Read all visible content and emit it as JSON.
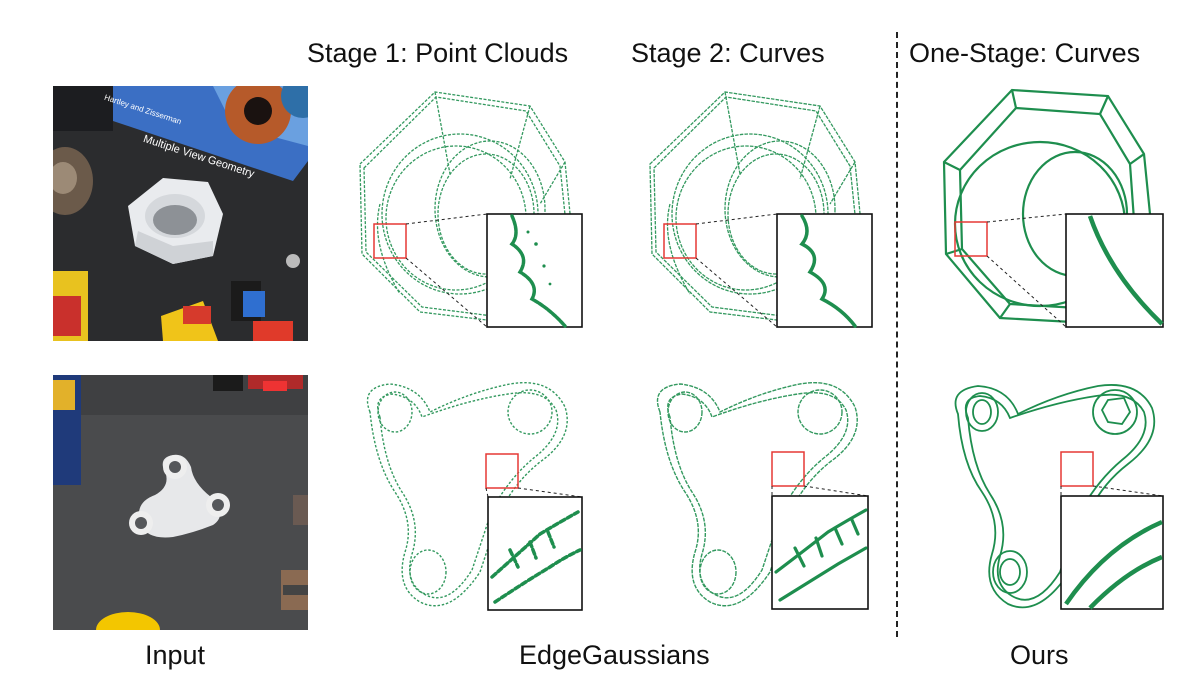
{
  "headers": {
    "stage1": "Stage 1: Point Clouds",
    "stage2": "Stage 2: Curves",
    "onestage": "One-Stage: Curves"
  },
  "footers": {
    "input": "Input",
    "baseline": "EdgeGaussians",
    "ours": "Ours"
  },
  "book": {
    "authors": "Hartley and Zisserman",
    "title": "Multiple View Geometry"
  },
  "colors": {
    "curve_green": "#1e8e4e",
    "zoom_box": "#e53935",
    "table": "#2a2b2d"
  }
}
